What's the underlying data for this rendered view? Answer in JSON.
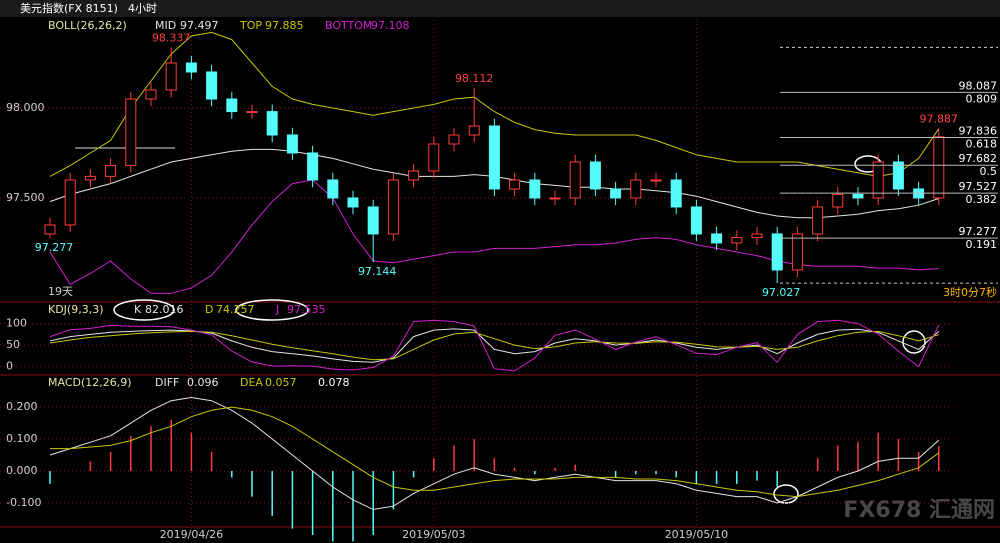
{
  "header": {
    "title": "美元指数(FX 8151)",
    "period": "4小时"
  },
  "status": {
    "days": "19天",
    "countdown": "3时0分7秒"
  },
  "watermark": "FX678 汇通网",
  "chart_data": [
    {
      "type": "candlestick",
      "indicator": "BOLL(26,26,2)",
      "categories": [
        null,
        null,
        null,
        null,
        null,
        null,
        null,
        "2019/04/26",
        null,
        null,
        null,
        null,
        null,
        null,
        null,
        null,
        null,
        null,
        null,
        "2019/05/03",
        null,
        null,
        null,
        null,
        null,
        null,
        null,
        null,
        null,
        null,
        null,
        null,
        "2019/05/10",
        null,
        null,
        null,
        null,
        null,
        null,
        null,
        null,
        null,
        null,
        null,
        null
      ],
      "open": [
        97.3,
        97.35,
        97.6,
        97.62,
        97.68,
        98.05,
        98.1,
        98.25,
        98.2,
        98.05,
        97.98,
        97.98,
        97.85,
        97.75,
        97.6,
        97.5,
        97.45,
        97.3,
        97.6,
        97.65,
        97.8,
        97.85,
        97.9,
        97.55,
        97.6,
        97.5,
        97.5,
        97.7,
        97.55,
        97.5,
        97.6,
        97.6,
        97.45,
        97.3,
        97.25,
        97.28,
        97.3,
        97.1,
        97.3,
        97.45,
        97.52,
        97.5,
        97.7,
        97.55,
        97.5
      ],
      "high": [
        97.39,
        97.64,
        97.66,
        97.72,
        98.09,
        98.14,
        98.337,
        98.29,
        98.24,
        98.09,
        98.02,
        98.02,
        97.89,
        97.79,
        97.64,
        97.54,
        97.49,
        97.64,
        97.69,
        97.84,
        97.89,
        98.112,
        97.94,
        97.64,
        97.64,
        97.54,
        97.74,
        97.74,
        97.59,
        97.64,
        97.64,
        97.64,
        97.49,
        97.34,
        97.32,
        97.34,
        97.34,
        97.34,
        97.49,
        97.56,
        97.56,
        97.74,
        97.74,
        97.59,
        97.887
      ],
      "low": [
        97.277,
        97.31,
        97.56,
        97.58,
        97.64,
        98.01,
        98.06,
        98.16,
        98.01,
        97.94,
        97.94,
        97.81,
        97.71,
        97.56,
        97.46,
        97.41,
        97.144,
        97.26,
        97.56,
        97.61,
        97.76,
        97.81,
        97.51,
        97.51,
        97.46,
        97.46,
        97.46,
        97.51,
        97.46,
        97.46,
        97.56,
        97.41,
        97.26,
        97.21,
        97.21,
        97.24,
        97.027,
        97.06,
        97.26,
        97.41,
        97.46,
        97.46,
        97.51,
        97.46,
        97.46
      ],
      "close": [
        97.35,
        97.6,
        97.62,
        97.68,
        98.05,
        98.1,
        98.25,
        98.2,
        98.05,
        97.98,
        97.98,
        97.85,
        97.75,
        97.6,
        97.5,
        97.45,
        97.3,
        97.6,
        97.65,
        97.8,
        97.85,
        97.9,
        97.55,
        97.6,
        97.5,
        97.5,
        97.7,
        97.55,
        97.5,
        97.6,
        97.6,
        97.45,
        97.3,
        97.25,
        97.28,
        97.3,
        97.1,
        97.3,
        97.45,
        97.52,
        97.5,
        97.7,
        97.55,
        97.5,
        97.84
      ],
      "up_color": "#ff3c3c",
      "down_color": "#54fcfc",
      "series": [
        {
          "name": "MID",
          "color": "#e6e6e6",
          "values": [
            97.48,
            97.52,
            97.55,
            97.58,
            97.62,
            97.66,
            97.7,
            97.72,
            97.74,
            97.76,
            97.77,
            97.77,
            97.76,
            97.74,
            97.72,
            97.69,
            97.66,
            97.64,
            97.62,
            97.62,
            97.62,
            97.63,
            97.62,
            97.6,
            97.58,
            97.57,
            97.56,
            97.56,
            97.55,
            97.55,
            97.54,
            97.53,
            97.51,
            97.48,
            97.45,
            97.42,
            97.4,
            97.39,
            97.39,
            97.4,
            97.41,
            97.43,
            97.44,
            97.46,
            97.497
          ]
        },
        {
          "name": "TOP",
          "color": "#c8c800",
          "values": [
            97.62,
            97.68,
            97.75,
            97.82,
            98.0,
            98.15,
            98.3,
            98.4,
            98.42,
            98.38,
            98.25,
            98.12,
            98.05,
            98.02,
            98.0,
            97.98,
            97.96,
            97.98,
            98.0,
            98.02,
            98.05,
            98.06,
            97.98,
            97.92,
            97.88,
            97.86,
            97.85,
            97.85,
            97.85,
            97.85,
            97.82,
            97.78,
            97.74,
            97.72,
            97.7,
            97.7,
            97.7,
            97.7,
            97.68,
            97.66,
            97.64,
            97.62,
            97.64,
            97.72,
            97.885
          ]
        },
        {
          "name": "BOTTOM",
          "color": "#d21ed2",
          "values": [
            97.2,
            97.02,
            97.08,
            97.15,
            97.05,
            96.97,
            96.97,
            97.0,
            97.07,
            97.2,
            97.35,
            97.48,
            97.58,
            97.6,
            97.5,
            97.3,
            97.15,
            97.14,
            97.16,
            97.18,
            97.2,
            97.2,
            97.22,
            97.22,
            97.22,
            97.23,
            97.24,
            97.24,
            97.25,
            97.27,
            97.28,
            97.27,
            97.24,
            97.22,
            97.2,
            97.18,
            97.15,
            97.13,
            97.12,
            97.12,
            97.12,
            97.11,
            97.11,
            97.1,
            97.108
          ]
        }
      ],
      "ylim": [
        96.933,
        98.489
      ],
      "yticks": [
        {
          "value": 98,
          "label": "98.000"
        },
        {
          "value": 97.5,
          "label": "97.500"
        }
      ],
      "fib": [
        {
          "value": 98.087,
          "ratio": 0.809
        },
        {
          "value": 97.836,
          "ratio": 0.618
        },
        {
          "value": 97.682,
          "ratio": 0.5
        },
        {
          "value": 97.527,
          "ratio": 0.382
        },
        {
          "value": 97.277,
          "ratio": 0.191
        }
      ],
      "grid": true
    },
    {
      "type": "line",
      "indicator": "KDJ(9,3,3)",
      "series": [
        {
          "name": "K",
          "color": "#e6e6e6",
          "values": [
            60,
            70,
            75,
            80,
            82,
            84,
            85,
            83,
            78,
            60,
            45,
            35,
            30,
            25,
            18,
            12,
            10,
            20,
            70,
            85,
            88,
            85,
            40,
            30,
            35,
            55,
            65,
            60,
            50,
            55,
            62,
            55,
            45,
            40,
            45,
            50,
            30,
            55,
            75,
            85,
            87,
            80,
            60,
            40,
            82.016
          ]
        },
        {
          "name": "D",
          "color": "#c8c800",
          "values": [
            55,
            62,
            68,
            72,
            76,
            79,
            81,
            82,
            80,
            72,
            62,
            52,
            44,
            37,
            30,
            22,
            16,
            18,
            40,
            62,
            76,
            80,
            65,
            50,
            42,
            46,
            55,
            58,
            55,
            54,
            58,
            57,
            52,
            46,
            45,
            47,
            40,
            45,
            60,
            72,
            80,
            82,
            72,
            60,
            74.257
          ]
        },
        {
          "name": "J",
          "color": "#d21ed2",
          "values": [
            70,
            86,
            89,
            96,
            94,
            94,
            93,
            85,
            74,
            36,
            11,
            1,
            2,
            1,
            -6,
            -8,
            -2,
            24,
            105,
            108,
            105,
            95,
            -5,
            -10,
            20,
            73,
            85,
            64,
            40,
            57,
            70,
            51,
            31,
            28,
            45,
            56,
            10,
            75,
            105,
            108,
            100,
            76,
            36,
            0,
            97.535
          ]
        }
      ],
      "ylim": [
        -15,
        125
      ],
      "yticks": [
        100,
        50,
        0
      ],
      "grid": true
    },
    {
      "type": "macd",
      "indicator": "MACD(12,26,9)",
      "series": [
        {
          "name": "DIFF",
          "color": "#e6e6e6",
          "values": [
            0.05,
            0.07,
            0.09,
            0.11,
            0.15,
            0.19,
            0.22,
            0.23,
            0.22,
            0.19,
            0.15,
            0.1,
            0.05,
            0.0,
            -0.05,
            -0.09,
            -0.12,
            -0.11,
            -0.07,
            -0.04,
            -0.01,
            0.01,
            -0.01,
            -0.02,
            -0.03,
            -0.02,
            -0.01,
            -0.02,
            -0.03,
            -0.03,
            -0.03,
            -0.04,
            -0.06,
            -0.07,
            -0.08,
            -0.08,
            -0.1,
            -0.08,
            -0.05,
            -0.02,
            0.0,
            0.03,
            0.04,
            0.04,
            0.096
          ]
        },
        {
          "name": "DEA",
          "color": "#c8c800",
          "values": [
            0.07,
            0.07,
            0.075,
            0.08,
            0.095,
            0.12,
            0.14,
            0.17,
            0.19,
            0.2,
            0.19,
            0.17,
            0.14,
            0.1,
            0.06,
            0.02,
            -0.02,
            -0.05,
            -0.06,
            -0.06,
            -0.05,
            -0.04,
            -0.03,
            -0.025,
            -0.025,
            -0.025,
            -0.02,
            -0.02,
            -0.02,
            -0.025,
            -0.025,
            -0.03,
            -0.04,
            -0.05,
            -0.06,
            -0.065,
            -0.075,
            -0.08,
            -0.07,
            -0.06,
            -0.045,
            -0.03,
            -0.01,
            0.01,
            0.057
          ]
        }
      ],
      "hist_values": [
        -0.04,
        0,
        0.03,
        0.06,
        0.11,
        0.14,
        0.16,
        0.12,
        0.06,
        -0.02,
        -0.08,
        -0.14,
        -0.18,
        -0.2,
        -0.22,
        -0.22,
        -0.2,
        -0.12,
        -0.02,
        0.04,
        0.08,
        0.1,
        0.04,
        0.01,
        -0.01,
        0.01,
        0.02,
        0,
        -0.02,
        -0.01,
        -0.01,
        -0.02,
        -0.04,
        -0.04,
        -0.04,
        -0.03,
        -0.05,
        0,
        0.04,
        0.08,
        0.09,
        0.12,
        0.1,
        0.06,
        0.078
      ],
      "up_color": "#ff3c3c",
      "down_color": "#54fcfc",
      "ylim": [
        -0.175,
        0.294
      ],
      "yticks": [
        {
          "value": 0.2,
          "label": "0.200"
        },
        {
          "value": 0.1,
          "label": "0.100"
        },
        {
          "value": 0,
          "label": "0.000"
        },
        {
          "value": -0.1,
          "label": "-0.100"
        }
      ],
      "grid": true
    }
  ]
}
